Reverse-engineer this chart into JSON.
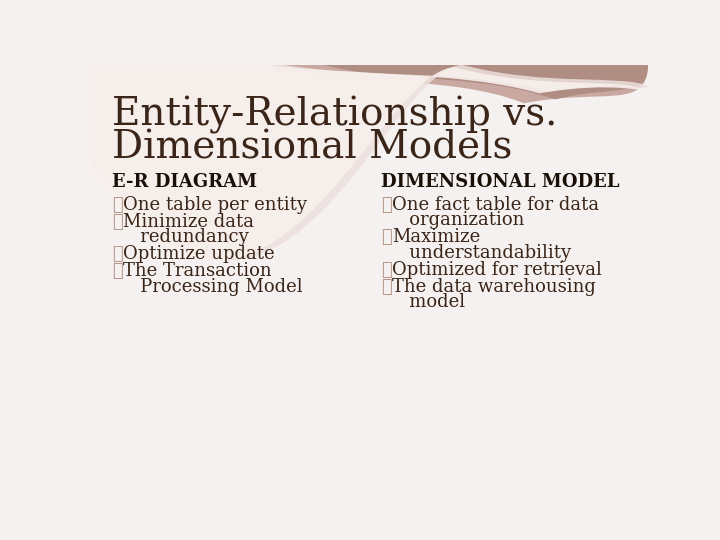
{
  "title_line1": "Entity-Relationship vs.",
  "title_line2": "Dimensional Models",
  "bg_color": "#f4f1f0",
  "title_color": "#3a2518",
  "header_color": "#1a1008",
  "body_color": "#3a2518",
  "bullet_color": "#b8968a",
  "left_header": "E-R DIAGRAM",
  "right_header": "DIMENSIONAL MODEL",
  "left_items": [
    [
      "One table per entity"
    ],
    [
      "Minimize data",
      "   redundancy"
    ],
    [
      "Optimize update"
    ],
    [
      "The Transaction",
      "   Processing Model"
    ]
  ],
  "right_items": [
    [
      "One fact table for data",
      "   organization"
    ],
    [
      "Maximize",
      "   understandability"
    ],
    [
      "Optimized for retrieval"
    ],
    [
      "The data warehousing",
      "   model"
    ]
  ],
  "title_fontsize": 28,
  "header_fontsize": 13,
  "body_fontsize": 13
}
